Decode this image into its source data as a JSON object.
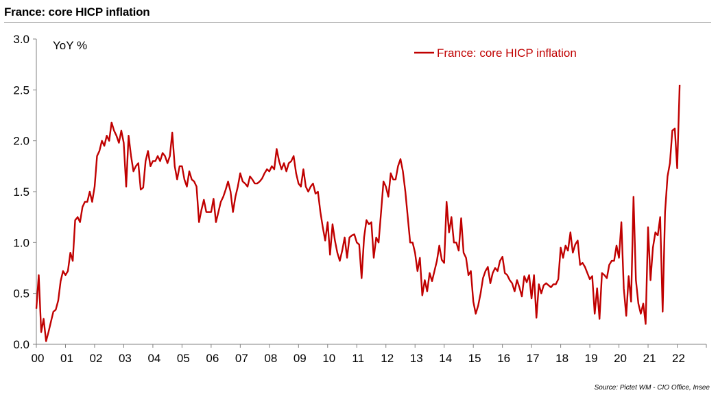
{
  "title": "France: core HICP inflation",
  "source": "Source: Pictet WM - CIO Office, Insee",
  "chart_data": {
    "type": "line",
    "title": "France: core HICP inflation",
    "ylabel": "YoY %",
    "xlabel": "",
    "ylim": [
      0,
      3
    ],
    "yticks": [
      "0.0",
      "0.5",
      "1.0",
      "1.5",
      "2.0",
      "2.5",
      "3.0"
    ],
    "xlim": [
      2000,
      2023
    ],
    "xticks": [
      "00",
      "01",
      "02",
      "03",
      "04",
      "05",
      "06",
      "07",
      "08",
      "09",
      "10",
      "11",
      "12",
      "13",
      "14",
      "15",
      "16",
      "17",
      "18",
      "19",
      "20",
      "21",
      "22"
    ],
    "legend": "top-right",
    "grid": false,
    "color": "#C00000",
    "series": [
      {
        "name": "France: core HICP inflation",
        "x_start": "2000-01",
        "frequency": "monthly",
        "values": [
          0.35,
          0.68,
          0.12,
          0.25,
          0.03,
          0.12,
          0.22,
          0.32,
          0.34,
          0.43,
          0.62,
          0.72,
          0.68,
          0.72,
          0.9,
          0.82,
          1.22,
          1.25,
          1.2,
          1.35,
          1.4,
          1.4,
          1.5,
          1.4,
          1.55,
          1.85,
          1.9,
          2.0,
          1.95,
          2.05,
          2.0,
          2.18,
          2.1,
          2.05,
          1.98,
          2.1,
          1.98,
          1.55,
          2.05,
          1.85,
          1.7,
          1.75,
          1.78,
          1.52,
          1.54,
          1.8,
          1.9,
          1.75,
          1.8,
          1.8,
          1.85,
          1.8,
          1.88,
          1.85,
          1.78,
          1.85,
          2.08,
          1.75,
          1.62,
          1.75,
          1.75,
          1.62,
          1.55,
          1.7,
          1.62,
          1.6,
          1.55,
          1.2,
          1.32,
          1.42,
          1.3,
          1.3,
          1.3,
          1.43,
          1.2,
          1.3,
          1.4,
          1.45,
          1.52,
          1.6,
          1.5,
          1.3,
          1.45,
          1.55,
          1.68,
          1.6,
          1.58,
          1.55,
          1.65,
          1.62,
          1.58,
          1.58,
          1.6,
          1.63,
          1.68,
          1.72,
          1.7,
          1.75,
          1.72,
          1.92,
          1.8,
          1.72,
          1.78,
          1.7,
          1.78,
          1.8,
          1.85,
          1.68,
          1.58,
          1.55,
          1.72,
          1.55,
          1.5,
          1.55,
          1.58,
          1.48,
          1.5,
          1.3,
          1.15,
          1.02,
          1.2,
          0.88,
          1.18,
          1.02,
          0.9,
          0.82,
          0.92,
          1.05,
          0.85,
          1.05,
          1.07,
          1.08,
          1.0,
          0.98,
          0.65,
          1.05,
          1.22,
          1.18,
          1.2,
          0.85,
          1.05,
          1.0,
          1.3,
          1.6,
          1.55,
          1.45,
          1.68,
          1.62,
          1.62,
          1.75,
          1.82,
          1.7,
          1.5,
          1.25,
          1.0,
          1.0,
          0.9,
          0.72,
          0.85,
          0.48,
          0.63,
          0.52,
          0.7,
          0.62,
          0.72,
          0.82,
          0.97,
          0.83,
          0.8,
          1.4,
          1.1,
          1.25,
          1.0,
          1.0,
          0.92,
          1.24,
          0.9,
          0.85,
          0.68,
          0.72,
          0.42,
          0.3,
          0.38,
          0.5,
          0.65,
          0.72,
          0.76,
          0.6,
          0.7,
          0.75,
          0.72,
          0.82,
          0.86,
          0.7,
          0.68,
          0.63,
          0.6,
          0.52,
          0.63,
          0.56,
          0.47,
          0.67,
          0.61,
          0.68,
          0.45,
          0.68,
          0.26,
          0.59,
          0.5,
          0.58,
          0.6,
          0.58,
          0.56,
          0.59,
          0.59,
          0.64,
          0.95,
          0.85,
          0.97,
          0.92,
          1.1,
          0.9,
          0.98,
          1.02,
          0.78,
          0.8,
          0.76,
          0.7,
          0.64,
          0.67,
          0.3,
          0.55,
          0.25,
          0.7,
          0.68,
          0.65,
          0.78,
          0.82,
          0.82,
          0.97,
          0.85,
          1.2,
          0.55,
          0.28,
          0.67,
          0.42,
          1.45,
          0.63,
          0.4,
          0.3,
          0.4,
          0.2,
          1.15,
          0.63,
          0.95,
          1.1,
          1.07,
          1.25,
          0.32,
          1.3,
          1.65,
          1.78,
          2.1,
          2.12,
          1.73,
          2.55
        ]
      }
    ]
  }
}
